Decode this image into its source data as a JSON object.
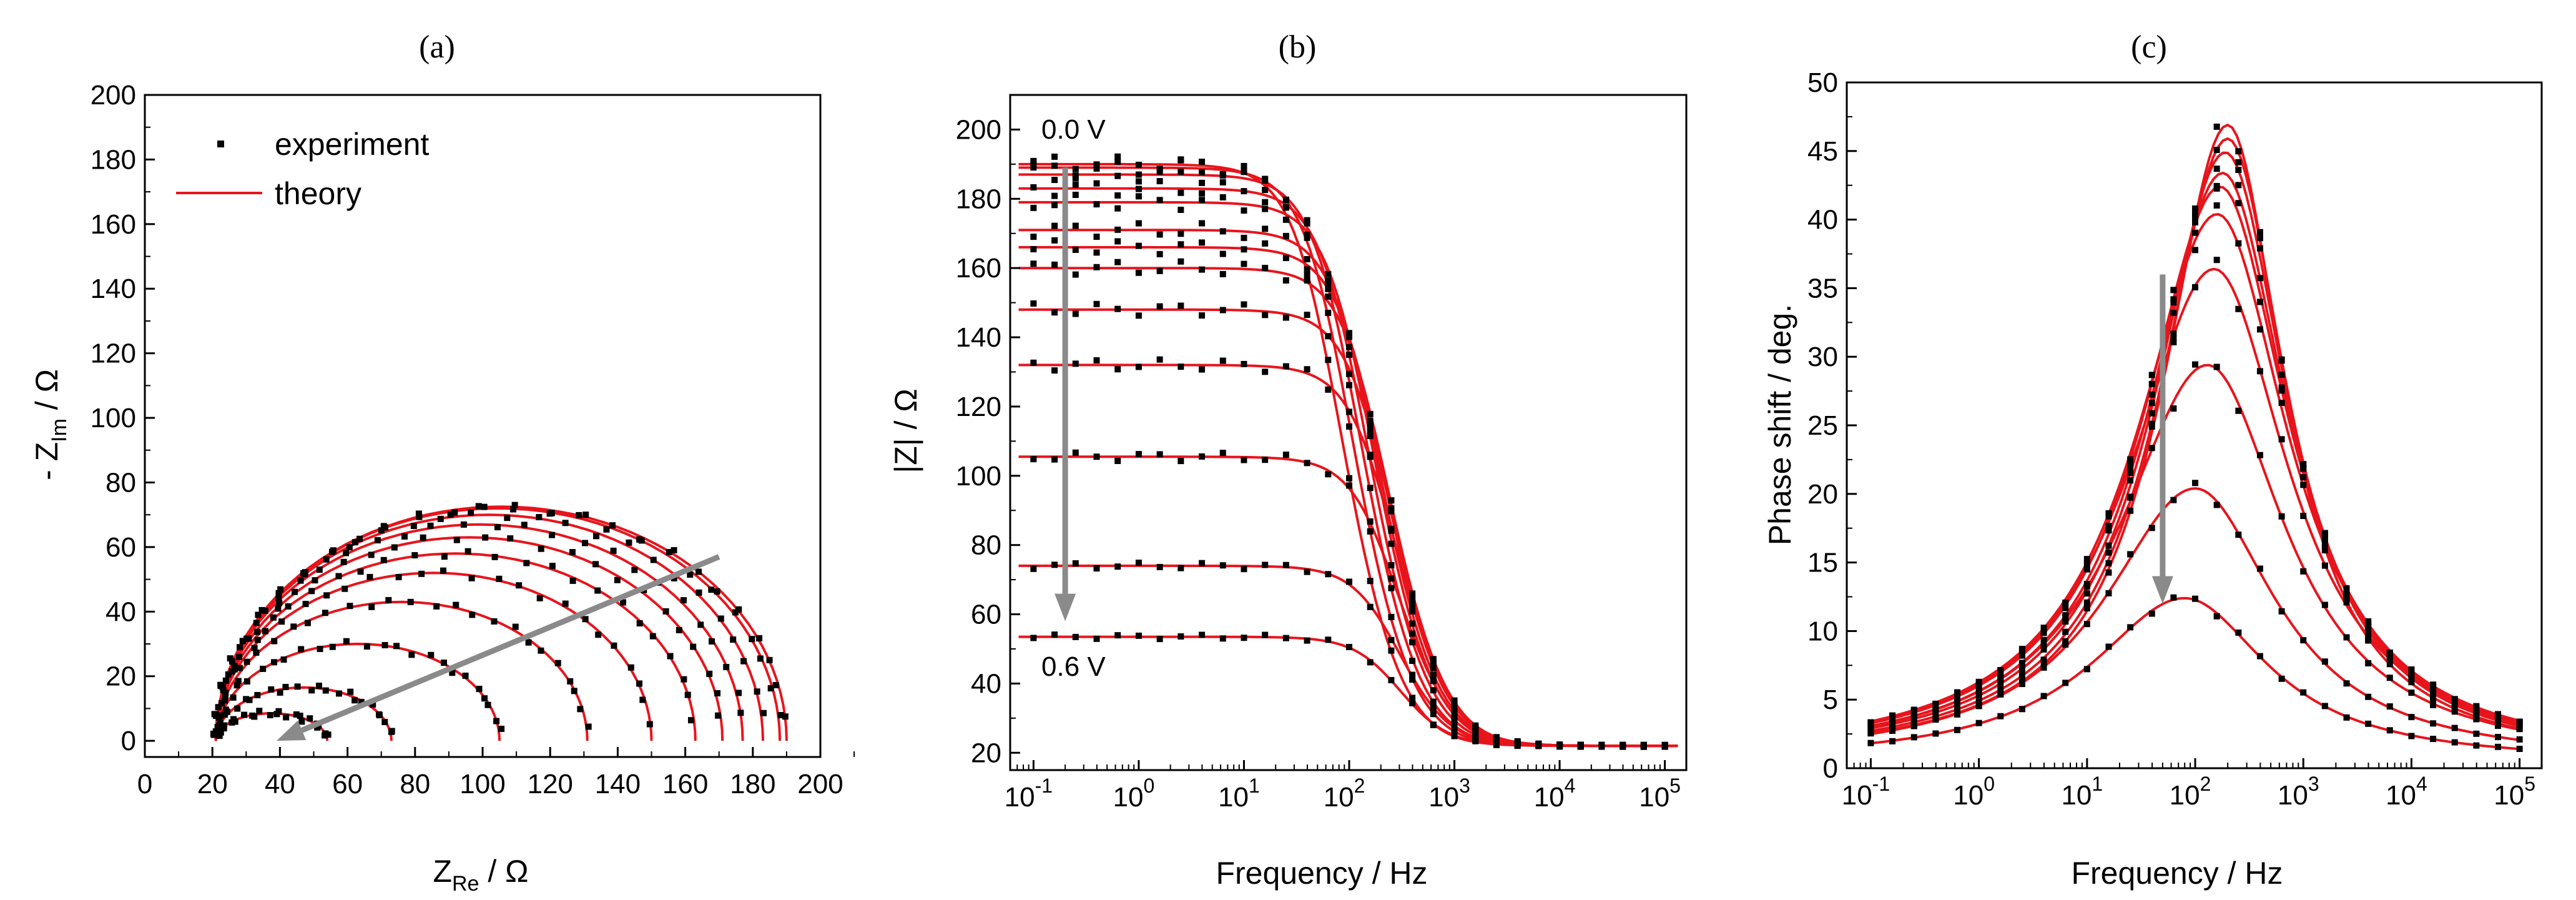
{
  "chart_data": [
    {
      "panel": "a",
      "panel_label": "(a)",
      "type": "scatter",
      "title": "",
      "xlabel": {
        "main": "Z",
        "sub": "Re",
        "unit": " / Ω"
      },
      "ylabel": {
        "main": "- Z",
        "sub": "Im",
        "unit": " / Ω"
      },
      "xlim": [
        0,
        200
      ],
      "ylim": [
        -5,
        200
      ],
      "xticks": [
        "0",
        "20",
        "40",
        "60",
        "80",
        "100",
        "120",
        "140",
        "160",
        "180",
        "200"
      ],
      "yticks": [
        "0",
        "20",
        "40",
        "60",
        "80",
        "100",
        "120",
        "140",
        "160",
        "180",
        "200"
      ],
      "legend": {
        "position": "top-left",
        "experiment": "experiment",
        "theory": "theory"
      },
      "rs": 21,
      "radii": [
        84.5,
        83.5,
        81,
        78,
        75,
        71,
        64.5,
        55,
        42,
        26,
        16.5
      ],
      "peak_heights": [
        72.5,
        72,
        70,
        67,
        63,
        58,
        52,
        43,
        30,
        16.5,
        8.5
      ],
      "arrow": {
        "from": [
          170,
          57
        ],
        "to": [
          39,
          0
        ]
      },
      "colors": {
        "theory": "#e8141c",
        "experiment": "#000000",
        "arrow": "#8a8a8a"
      }
    },
    {
      "panel": "b",
      "panel_label": "(b)",
      "type": "line",
      "xscale": "log",
      "xlabel": "Frequency / Hz",
      "ylabel": "|Z| / Ω",
      "xlim": [
        0.06,
        160000
      ],
      "ylim": [
        15,
        210
      ],
      "xticks": [
        {
          "base": "10",
          "exp": "-1"
        },
        {
          "base": "10",
          "exp": "0"
        },
        {
          "base": "10",
          "exp": "1"
        },
        {
          "base": "10",
          "exp": "2"
        },
        {
          "base": "10",
          "exp": "3"
        },
        {
          "base": "10",
          "exp": "4"
        },
        {
          "base": "10",
          "exp": "5"
        }
      ],
      "yticks": [
        "20",
        "40",
        "60",
        "80",
        "100",
        "120",
        "140",
        "160",
        "180",
        "200"
      ],
      "annotations": {
        "top": "0.0 V",
        "bottom": "0.6 V"
      },
      "rs": 22,
      "low_frequency_modulus": [
        190,
        189,
        187,
        183,
        179,
        171,
        166,
        160,
        148,
        132,
        105.5,
        74,
        53.5
      ],
      "arrow": {
        "from_value": 189,
        "to_value": 58,
        "at_frequency": 0.2
      },
      "colors": {
        "theory": "#e8141c",
        "experiment": "#000000",
        "arrow": "#8a8a8a"
      }
    },
    {
      "panel": "c",
      "panel_label": "(c)",
      "type": "line",
      "xscale": "log",
      "xlabel": "Frequency / Hz",
      "ylabel": "Phase shift / deg.",
      "xlim": [
        0.06,
        160000
      ],
      "ylim": [
        0,
        50
      ],
      "xticks": [
        {
          "base": "10",
          "exp": "-1"
        },
        {
          "base": "10",
          "exp": "0"
        },
        {
          "base": "10",
          "exp": "1"
        },
        {
          "base": "10",
          "exp": "2"
        },
        {
          "base": "10",
          "exp": "3"
        },
        {
          "base": "10",
          "exp": "4"
        },
        {
          "base": "10",
          "exp": "5"
        }
      ],
      "yticks": [
        "0",
        "5",
        "10",
        "15",
        "20",
        "25",
        "30",
        "35",
        "40",
        "45",
        "50"
      ],
      "peak_phase": [
        46.5,
        45.5,
        44.5,
        43,
        42,
        40,
        36,
        29,
        20,
        12
      ],
      "peak_frequency": [
        200,
        200,
        190,
        180,
        170,
        160,
        150,
        130,
        100,
        80
      ],
      "arrow": {
        "from_value": 36,
        "to_value": 12,
        "at_frequency": 50
      },
      "colors": {
        "theory": "#e8141c",
        "experiment": "#000000",
        "arrow": "#8a8a8a"
      }
    }
  ]
}
